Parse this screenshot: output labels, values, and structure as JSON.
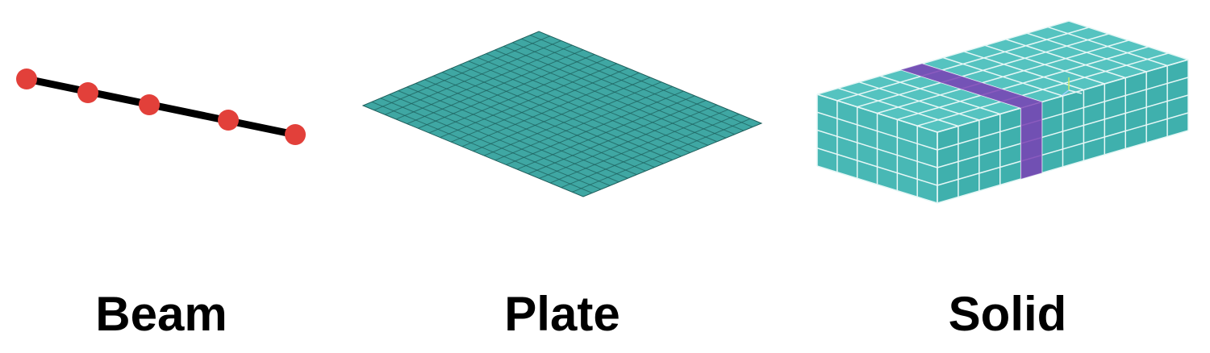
{
  "panels": [
    {
      "id": "beam",
      "label": "Beam"
    },
    {
      "id": "plate",
      "label": "Plate"
    },
    {
      "id": "solid",
      "label": "Solid"
    }
  ],
  "beam": {
    "node_count": 5,
    "node_color": "#e2403a",
    "line_color": "#000000"
  },
  "plate": {
    "grid_divisions": 20,
    "fill_color": "#3fa7a3",
    "grid_line_color": "#1e5f5c"
  },
  "solid": {
    "divisions_x": 12,
    "divisions_y": 6,
    "divisions_z": 4,
    "fill_top": "#55c3c0",
    "fill_front": "#48b8b5",
    "fill_side": "#3fb0ad",
    "grid_line_color": "#e6f7f6",
    "highlight_color": "#7a3fb4"
  }
}
